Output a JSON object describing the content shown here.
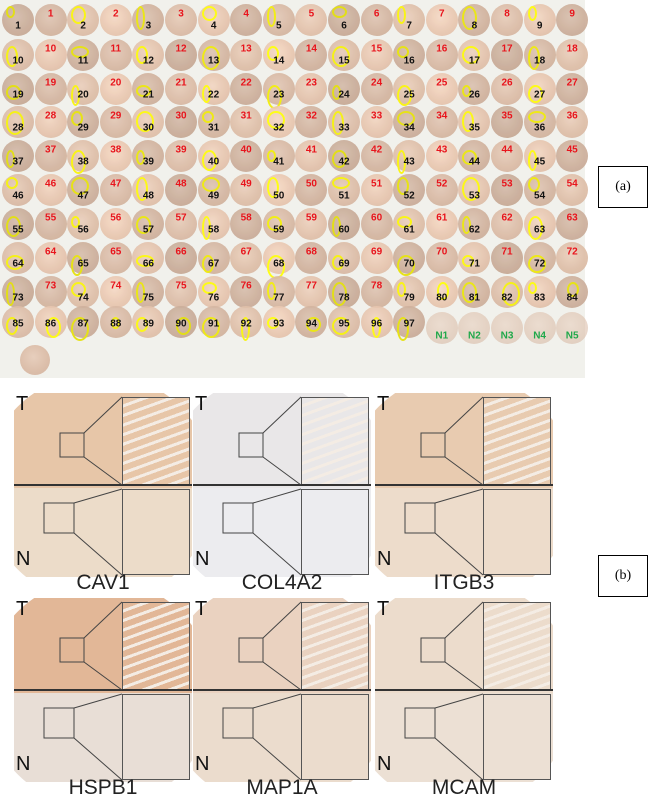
{
  "panel_a": {
    "label": "(a)",
    "highlight_color": "#f5f000",
    "rows": [
      [
        [
          "1",
          "black"
        ],
        [
          "1",
          "red"
        ],
        [
          "2",
          "black"
        ],
        [
          "2",
          "red"
        ],
        [
          "3",
          "black"
        ],
        [
          "3",
          "red"
        ],
        [
          "4",
          "black"
        ],
        [
          "4",
          "red"
        ],
        [
          "5",
          "black"
        ],
        [
          "5",
          "red"
        ],
        [
          "6",
          "black"
        ],
        [
          "6",
          "red"
        ],
        [
          "7",
          "black"
        ],
        [
          "7",
          "red"
        ],
        [
          "8",
          "black"
        ],
        [
          "8",
          "red"
        ],
        [
          "9",
          "black"
        ],
        [
          "9",
          "red"
        ]
      ],
      [
        [
          "10",
          "black"
        ],
        [
          "10",
          "red"
        ],
        [
          "11",
          "black"
        ],
        [
          "11",
          "red"
        ],
        [
          "12",
          "black"
        ],
        [
          "12",
          "red"
        ],
        [
          "13",
          "black"
        ],
        [
          "13",
          "red"
        ],
        [
          "14",
          "black"
        ],
        [
          "14",
          "red"
        ],
        [
          "15",
          "black"
        ],
        [
          "15",
          "red"
        ],
        [
          "16",
          "black"
        ],
        [
          "16",
          "red"
        ],
        [
          "17",
          "black"
        ],
        [
          "17",
          "red"
        ],
        [
          "18",
          "black"
        ],
        [
          "18",
          "red"
        ]
      ],
      [
        [
          "19",
          "black"
        ],
        [
          "19",
          "red"
        ],
        [
          "20",
          "black"
        ],
        [
          "20",
          "red"
        ],
        [
          "21",
          "black"
        ],
        [
          "21",
          "red"
        ],
        [
          "22",
          "black"
        ],
        [
          "22",
          "red"
        ],
        [
          "23",
          "black"
        ],
        [
          "23",
          "red"
        ],
        [
          "24",
          "black"
        ],
        [
          "24",
          "red"
        ],
        [
          "25",
          "black"
        ],
        [
          "25",
          "red"
        ],
        [
          "26",
          "black"
        ],
        [
          "26",
          "red"
        ],
        [
          "27",
          "black"
        ],
        [
          "27",
          "red"
        ]
      ],
      [
        [
          "28",
          "black"
        ],
        [
          "28",
          "red"
        ],
        [
          "29",
          "black"
        ],
        [
          "29",
          "red"
        ],
        [
          "30",
          "black"
        ],
        [
          "30",
          "red"
        ],
        [
          "31",
          "black"
        ],
        [
          "31",
          "red"
        ],
        [
          "32",
          "black"
        ],
        [
          "32",
          "red"
        ],
        [
          "33",
          "black"
        ],
        [
          "33",
          "red"
        ],
        [
          "34",
          "black"
        ],
        [
          "34",
          "red"
        ],
        [
          "35",
          "black"
        ],
        [
          "35",
          "red"
        ],
        [
          "36",
          "black"
        ],
        [
          "36",
          "red"
        ]
      ],
      [
        [
          "37",
          "black"
        ],
        [
          "37",
          "red"
        ],
        [
          "38",
          "black"
        ],
        [
          "38",
          "red"
        ],
        [
          "39",
          "black"
        ],
        [
          "39",
          "red"
        ],
        [
          "40",
          "black"
        ],
        [
          "40",
          "red"
        ],
        [
          "41",
          "black"
        ],
        [
          "41",
          "red"
        ],
        [
          "42",
          "black"
        ],
        [
          "42",
          "red"
        ],
        [
          "43",
          "black"
        ],
        [
          "43",
          "red"
        ],
        [
          "44",
          "black"
        ],
        [
          "44",
          "red"
        ],
        [
          "45",
          "black"
        ],
        [
          "45",
          "red"
        ]
      ],
      [
        [
          "46",
          "black"
        ],
        [
          "46",
          "red"
        ],
        [
          "47",
          "black"
        ],
        [
          "47",
          "red"
        ],
        [
          "48",
          "black"
        ],
        [
          "48",
          "red"
        ],
        [
          "49",
          "black"
        ],
        [
          "49",
          "red"
        ],
        [
          "50",
          "black"
        ],
        [
          "50",
          "red"
        ],
        [
          "51",
          "black"
        ],
        [
          "51",
          "red"
        ],
        [
          "52",
          "black"
        ],
        [
          "52",
          "red"
        ],
        [
          "53",
          "black"
        ],
        [
          "53",
          "red"
        ],
        [
          "54",
          "black"
        ],
        [
          "54",
          "red"
        ]
      ],
      [
        [
          "55",
          "black"
        ],
        [
          "55",
          "red"
        ],
        [
          "56",
          "black"
        ],
        [
          "56",
          "red"
        ],
        [
          "57",
          "black"
        ],
        [
          "57",
          "red"
        ],
        [
          "58",
          "black"
        ],
        [
          "58",
          "red"
        ],
        [
          "59",
          "black"
        ],
        [
          "59",
          "red"
        ],
        [
          "60",
          "black"
        ],
        [
          "60",
          "red"
        ],
        [
          "61",
          "black"
        ],
        [
          "61",
          "red"
        ],
        [
          "62",
          "black"
        ],
        [
          "62",
          "red"
        ],
        [
          "63",
          "black"
        ],
        [
          "63",
          "red"
        ]
      ],
      [
        [
          "64",
          "black"
        ],
        [
          "64",
          "red"
        ],
        [
          "65",
          "black"
        ],
        [
          "65",
          "red"
        ],
        [
          "66",
          "black"
        ],
        [
          "66",
          "red"
        ],
        [
          "67",
          "black"
        ],
        [
          "67",
          "red"
        ],
        [
          "68",
          "black"
        ],
        [
          "68",
          "red"
        ],
        [
          "69",
          "black"
        ],
        [
          "69",
          "red"
        ],
        [
          "70",
          "black"
        ],
        [
          "70",
          "red"
        ],
        [
          "71",
          "black"
        ],
        [
          "71",
          "red"
        ],
        [
          "72",
          "black"
        ],
        [
          "72",
          "red"
        ]
      ],
      [
        [
          "73",
          "black"
        ],
        [
          "73",
          "red"
        ],
        [
          "74",
          "black"
        ],
        [
          "74",
          "red"
        ],
        [
          "75",
          "black"
        ],
        [
          "75",
          "red"
        ],
        [
          "76",
          "black"
        ],
        [
          "76",
          "red"
        ],
        [
          "77",
          "black"
        ],
        [
          "77",
          "red"
        ],
        [
          "78",
          "black"
        ],
        [
          "78",
          "red"
        ],
        [
          "79",
          "black"
        ],
        [
          "80",
          "black"
        ],
        [
          "81",
          "black"
        ],
        [
          "82",
          "black"
        ],
        [
          "83",
          "black"
        ],
        [
          "84",
          "black"
        ]
      ],
      [
        [
          "85",
          "black"
        ],
        [
          "86",
          "black"
        ],
        [
          "87",
          "black"
        ],
        [
          "88",
          "black"
        ],
        [
          "89",
          "black"
        ],
        [
          "90",
          "black"
        ],
        [
          "91",
          "black"
        ],
        [
          "92",
          "black"
        ],
        [
          "93",
          "black"
        ],
        [
          "94",
          "black"
        ],
        [
          "95",
          "black"
        ],
        [
          "96",
          "black"
        ],
        [
          "97",
          "black"
        ],
        [
          "N1",
          "green"
        ],
        [
          "N2",
          "green"
        ],
        [
          "N3",
          "green"
        ],
        [
          "N4",
          "green"
        ],
        [
          "N5",
          "green"
        ]
      ]
    ]
  },
  "panel_b": {
    "label": "(b)",
    "tumor_label": "T",
    "normal_label": "N",
    "genes": [
      {
        "name": "CAV1",
        "tint_t": "#e7c6a8",
        "tint_n": "#ecdcc9"
      },
      {
        "name": "COL4A2",
        "tint_t": "#e9e7e8",
        "tint_n": "#ececef"
      },
      {
        "name": "ITGB3",
        "tint_t": "#e8cbb0",
        "tint_n": "#eddccb"
      },
      {
        "name": "HSPB1",
        "tint_t": "#e2b797",
        "tint_n": "#e8ded6"
      },
      {
        "name": "MAP1A",
        "tint_t": "#ead2c0",
        "tint_n": "#ebdccd"
      },
      {
        "name": "MCAM",
        "tint_t": "#ecdccc",
        "tint_n": "#ece0d4"
      }
    ]
  }
}
